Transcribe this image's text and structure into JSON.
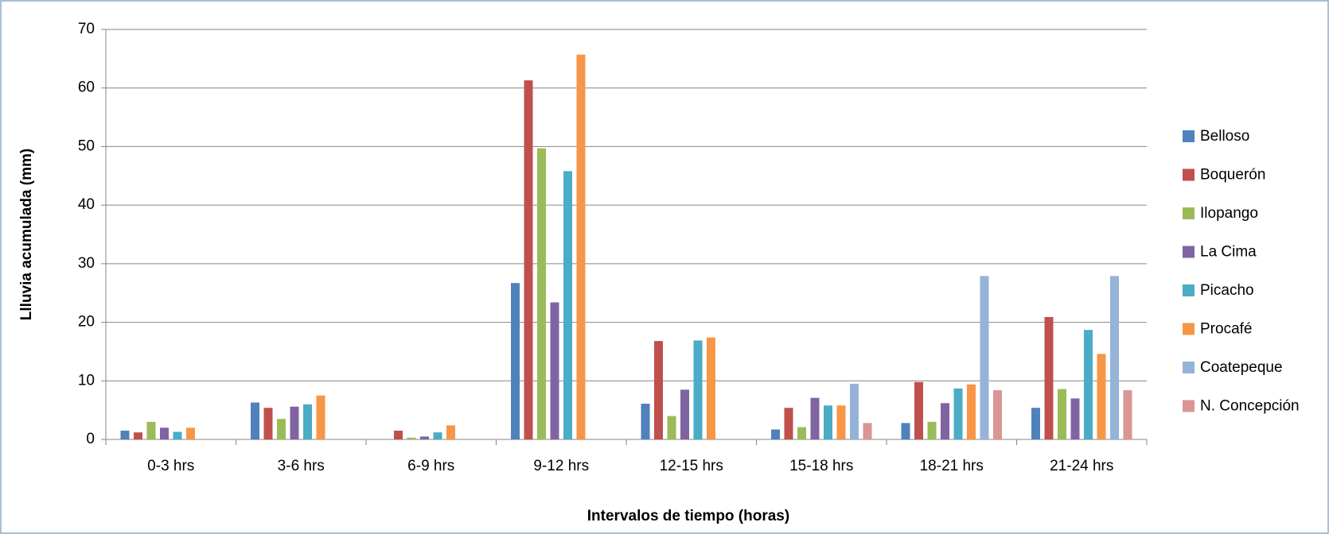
{
  "chart_data": {
    "type": "bar",
    "ylabel": "Llluvia  acumulada (mm)",
    "xlabel": "Intervalos de  tiempo (horas)",
    "categories": [
      "0-3 hrs",
      "3-6 hrs",
      "6-9 hrs",
      "9-12 hrs",
      "12-15 hrs",
      "15-18 hrs",
      "18-21 hrs",
      "21-24 hrs"
    ],
    "series": [
      {
        "name": "Belloso",
        "color": "#4f81bd",
        "values": [
          1.5,
          6.3,
          0,
          26.7,
          6.1,
          1.7,
          2.8,
          5.4
        ]
      },
      {
        "name": "Boquerón",
        "color": "#c0504d",
        "values": [
          1.2,
          5.4,
          1.5,
          61.3,
          16.8,
          5.4,
          9.8,
          20.9
        ]
      },
      {
        "name": "Ilopango",
        "color": "#9bbb59",
        "values": [
          3,
          3.5,
          0.3,
          49.7,
          4,
          2.1,
          3,
          8.6
        ]
      },
      {
        "name": "La Cima",
        "color": "#8064a2",
        "values": [
          2,
          5.6,
          0.5,
          23.4,
          8.5,
          7.1,
          6.2,
          7
        ]
      },
      {
        "name": "Picacho",
        "color": "#4bacc6",
        "values": [
          1.3,
          6,
          1.2,
          45.8,
          16.9,
          5.8,
          8.7,
          18.7
        ]
      },
      {
        "name": "Procafé",
        "color": "#f79646",
        "values": [
          2,
          7.5,
          2.4,
          65.7,
          17.4,
          5.8,
          9.4,
          14.6
        ]
      },
      {
        "name": "Coatepeque",
        "color": "#95b3d7",
        "values": [
          0,
          0,
          0,
          0,
          0,
          9.5,
          27.9,
          27.9
        ]
      },
      {
        "name": "N. Concepción",
        "color": "#d99694",
        "values": [
          0,
          0,
          0,
          0,
          0,
          2.8,
          8.4,
          8.4
        ]
      }
    ],
    "ylim": [
      0,
      70
    ],
    "yticks": [
      0,
      10,
      20,
      30,
      40,
      50,
      60,
      70
    ],
    "grid": true,
    "legend": "right"
  }
}
